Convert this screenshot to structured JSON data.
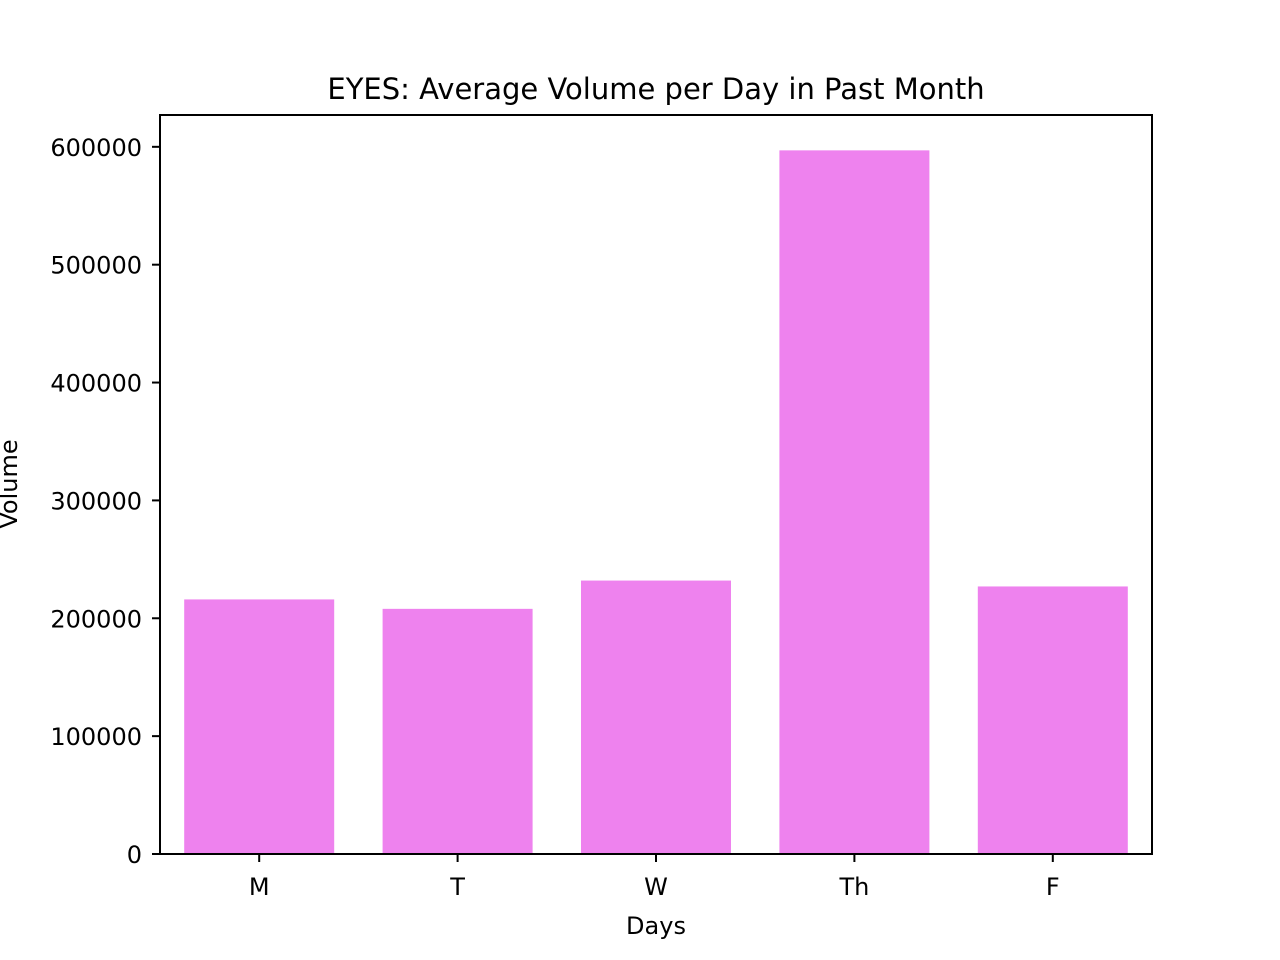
{
  "chart_data": {
    "type": "bar",
    "title": "EYES: Average Volume per Day in Past Month",
    "xlabel": "Days",
    "ylabel": "Volume",
    "categories": [
      "M",
      "T",
      "W",
      "Th",
      "F"
    ],
    "values": [
      216000,
      208000,
      232000,
      597000,
      227000
    ],
    "ylim": [
      0,
      627000
    ],
    "yticks": [
      0,
      100000,
      200000,
      300000,
      400000,
      500000,
      600000
    ],
    "ytick_labels": [
      "0",
      "100000",
      "200000",
      "300000",
      "400000",
      "500000",
      "600000"
    ],
    "grid": false,
    "legend": "none",
    "bar_color": "#ee82ee"
  }
}
